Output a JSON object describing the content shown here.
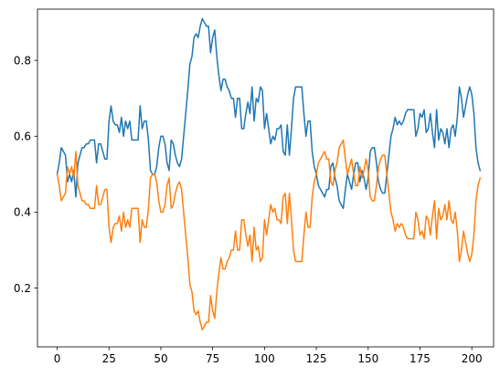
{
  "chart_data": {
    "type": "line",
    "title": "",
    "xlabel": "",
    "ylabel": "",
    "xlim": [
      -9.5,
      210.5
    ],
    "ylim": [
      0.045,
      0.935
    ],
    "xticks": [
      0,
      25,
      50,
      75,
      100,
      125,
      150,
      175,
      200
    ],
    "yticks": [
      0.2,
      0.4,
      0.6,
      0.8
    ],
    "grid": false,
    "legend": "none",
    "colors": [
      "#1f77b4",
      "#ff7f0e"
    ],
    "x_start": 0,
    "x_step": 1,
    "series": [
      {
        "values": [
          0.5,
          0.53,
          0.57,
          0.56,
          0.55,
          0.48,
          0.5,
          0.48,
          0.51,
          0.44,
          0.53,
          0.55,
          0.57,
          0.57,
          0.58,
          0.58,
          0.59,
          0.59,
          0.59,
          0.53,
          0.58,
          0.58,
          0.56,
          0.54,
          0.54,
          0.64,
          0.68,
          0.64,
          0.63,
          0.63,
          0.61,
          0.65,
          0.6,
          0.64,
          0.62,
          0.64,
          0.59,
          0.59,
          0.59,
          0.59,
          0.68,
          0.62,
          0.64,
          0.64,
          0.59,
          0.51,
          0.5,
          0.5,
          0.52,
          0.57,
          0.6,
          0.6,
          0.58,
          0.53,
          0.51,
          0.59,
          0.58,
          0.55,
          0.53,
          0.52,
          0.54,
          0.6,
          0.66,
          0.72,
          0.79,
          0.81,
          0.86,
          0.87,
          0.86,
          0.89,
          0.91,
          0.9,
          0.89,
          0.89,
          0.82,
          0.86,
          0.88,
          0.81,
          0.76,
          0.72,
          0.75,
          0.75,
          0.73,
          0.72,
          0.7,
          0.7,
          0.65,
          0.7,
          0.7,
          0.62,
          0.62,
          0.66,
          0.69,
          0.66,
          0.73,
          0.64,
          0.7,
          0.69,
          0.73,
          0.72,
          0.62,
          0.66,
          0.62,
          0.58,
          0.6,
          0.59,
          0.62,
          0.62,
          0.63,
          0.56,
          0.55,
          0.63,
          0.55,
          0.62,
          0.7,
          0.73,
          0.73,
          0.73,
          0.73,
          0.66,
          0.6,
          0.64,
          0.64,
          0.56,
          0.52,
          0.5,
          0.47,
          0.46,
          0.45,
          0.44,
          0.46,
          0.46,
          0.52,
          0.53,
          0.49,
          0.47,
          0.43,
          0.42,
          0.41,
          0.46,
          0.5,
          0.48,
          0.46,
          0.5,
          0.53,
          0.53,
          0.48,
          0.51,
          0.49,
          0.46,
          0.49,
          0.56,
          0.57,
          0.57,
          0.53,
          0.48,
          0.46,
          0.45,
          0.45,
          0.5,
          0.55,
          0.6,
          0.62,
          0.65,
          0.63,
          0.64,
          0.63,
          0.64,
          0.66,
          0.67,
          0.67,
          0.67,
          0.67,
          0.6,
          0.62,
          0.66,
          0.65,
          0.67,
          0.61,
          0.62,
          0.66,
          0.61,
          0.57,
          0.67,
          0.59,
          0.62,
          0.61,
          0.58,
          0.62,
          0.57,
          0.62,
          0.63,
          0.6,
          0.65,
          0.73,
          0.7,
          0.65,
          0.68,
          0.71,
          0.73,
          0.71,
          0.66,
          0.57,
          0.53,
          0.51
        ]
      },
      {
        "values": [
          0.5,
          0.47,
          0.43,
          0.44,
          0.45,
          0.52,
          0.5,
          0.52,
          0.49,
          0.56,
          0.47,
          0.45,
          0.43,
          0.43,
          0.42,
          0.42,
          0.41,
          0.41,
          0.41,
          0.47,
          0.42,
          0.42,
          0.44,
          0.46,
          0.46,
          0.36,
          0.32,
          0.36,
          0.37,
          0.37,
          0.39,
          0.35,
          0.4,
          0.36,
          0.38,
          0.36,
          0.41,
          0.41,
          0.41,
          0.41,
          0.32,
          0.38,
          0.36,
          0.36,
          0.41,
          0.49,
          0.5,
          0.5,
          0.48,
          0.43,
          0.4,
          0.4,
          0.42,
          0.47,
          0.49,
          0.41,
          0.42,
          0.45,
          0.47,
          0.48,
          0.46,
          0.4,
          0.34,
          0.28,
          0.21,
          0.19,
          0.14,
          0.13,
          0.14,
          0.11,
          0.09,
          0.1,
          0.11,
          0.11,
          0.18,
          0.14,
          0.12,
          0.19,
          0.24,
          0.28,
          0.25,
          0.25,
          0.27,
          0.28,
          0.3,
          0.3,
          0.35,
          0.3,
          0.3,
          0.38,
          0.38,
          0.34,
          0.31,
          0.34,
          0.27,
          0.36,
          0.3,
          0.31,
          0.27,
          0.28,
          0.38,
          0.34,
          0.38,
          0.42,
          0.4,
          0.41,
          0.38,
          0.38,
          0.37,
          0.44,
          0.45,
          0.37,
          0.45,
          0.38,
          0.3,
          0.27,
          0.27,
          0.27,
          0.27,
          0.34,
          0.4,
          0.36,
          0.36,
          0.44,
          0.48,
          0.5,
          0.53,
          0.54,
          0.55,
          0.56,
          0.54,
          0.54,
          0.48,
          0.47,
          0.51,
          0.53,
          0.57,
          0.58,
          0.59,
          0.54,
          0.5,
          0.52,
          0.54,
          0.5,
          0.47,
          0.47,
          0.52,
          0.49,
          0.51,
          0.54,
          0.51,
          0.44,
          0.43,
          0.43,
          0.47,
          0.52,
          0.54,
          0.55,
          0.55,
          0.5,
          0.45,
          0.4,
          0.38,
          0.35,
          0.37,
          0.36,
          0.37,
          0.36,
          0.34,
          0.33,
          0.33,
          0.33,
          0.33,
          0.4,
          0.38,
          0.34,
          0.35,
          0.33,
          0.39,
          0.38,
          0.34,
          0.39,
          0.43,
          0.33,
          0.41,
          0.38,
          0.39,
          0.42,
          0.38,
          0.43,
          0.38,
          0.37,
          0.4,
          0.35,
          0.27,
          0.3,
          0.35,
          0.32,
          0.29,
          0.27,
          0.29,
          0.34,
          0.43,
          0.47,
          0.49
        ]
      }
    ]
  }
}
